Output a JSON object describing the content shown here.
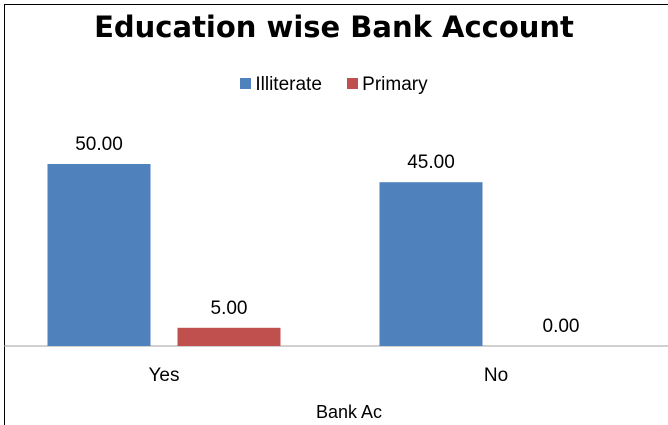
{
  "chart_data": {
    "type": "bar",
    "title": "Education wise Bank Account",
    "xlabel": "Bank Ac",
    "ylabel": "",
    "categories": [
      "Yes",
      "No"
    ],
    "series": [
      {
        "name": "Illiterate",
        "values": [
          50.0,
          45.0
        ],
        "labels": [
          "50.00",
          "45.00"
        ],
        "color": "#4f81bd"
      },
      {
        "name": "Primary",
        "values": [
          5.0,
          0.0
        ],
        "labels": [
          "5.00",
          "0.00"
        ],
        "color": "#c0504d"
      }
    ],
    "ylim": [
      0,
      55
    ],
    "grid": false,
    "legend": "top-center"
  }
}
